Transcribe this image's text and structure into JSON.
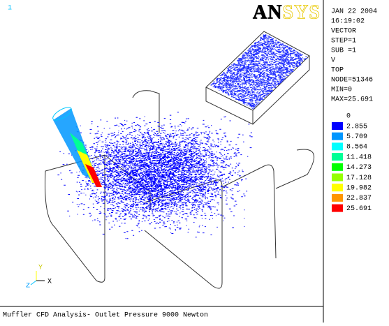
{
  "viewport": {
    "window_number": "1",
    "logo": "ANSYS",
    "triad": {
      "y": "Y",
      "x": "X",
      "z": "Z"
    },
    "title": "Muffler CFD Analysis- Outlet Pressure 9000 Newton"
  },
  "info": [
    "JAN 22 2004",
    "16:19:02",
    "VECTOR",
    "STEP=1",
    "SUB =1",
    "V",
    "TOP",
    "NODE=51346",
    "MIN=0",
    "MAX=25.691"
  ],
  "legend": {
    "values": [
      "0",
      "2.855",
      "5.709",
      "8.564",
      "11.418",
      "14.273",
      "17.128",
      "19.982",
      "22.837",
      "25.691"
    ],
    "colors": [
      "#0000ff",
      "#0096ff",
      "#00ffff",
      "#00ff96",
      "#00ff00",
      "#96ff00",
      "#ffff00",
      "#ff9600",
      "#ff0000"
    ]
  }
}
